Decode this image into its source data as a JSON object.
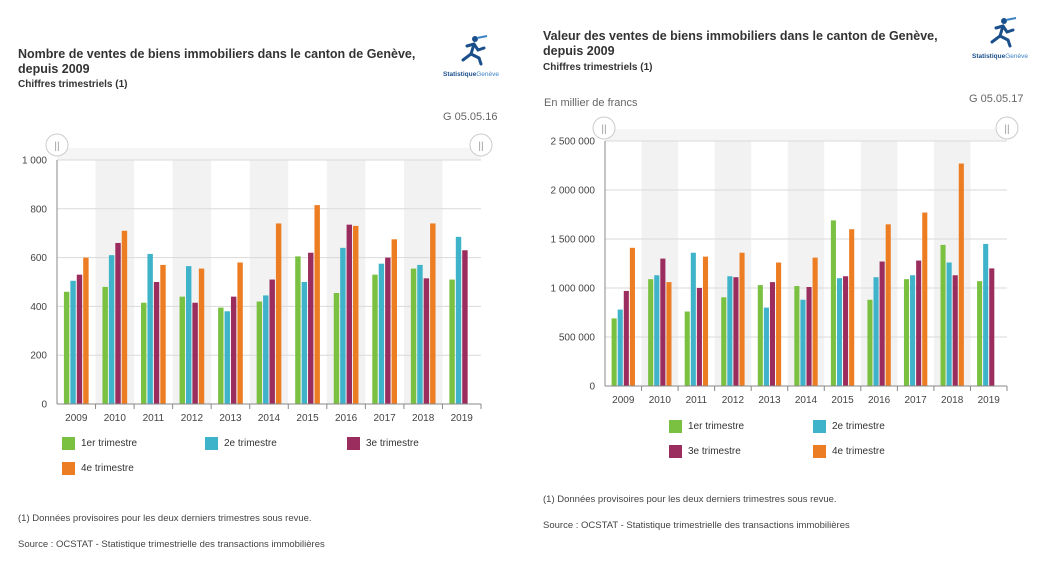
{
  "charts": [
    {
      "title": "Nombre de ventes de biens immobiliers dans le canton de Genève, depuis 2009",
      "subtitle": "Chiffres trimestriels (1)",
      "logo": {
        "brand_strong": "Statistique",
        "brand_light": "Genève",
        "icon": "runner-icon"
      },
      "code": "G 05.05.16",
      "unit": "",
      "note": "(1) Données provisoires pour les deux derniers trimestres sous revue.",
      "source": "Source : OCSTAT - Statistique trimestrielle des transactions immobilières",
      "handle_glyph": "||"
    },
    {
      "title": "Valeur des ventes de biens immobiliers dans le canton de Genève, depuis 2009",
      "subtitle": "Chiffres trimestriels (1)",
      "logo": {
        "brand_strong": "Statistique",
        "brand_light": "Genève",
        "icon": "runner-icon"
      },
      "code": "G 05.05.17",
      "unit": "En millier de francs",
      "note": "(1) Données provisoires pour les deux derniers trimestres sous revue.",
      "source": "Source : OCSTAT - Statistique trimestrielle des transactions immobilières",
      "handle_glyph": "||"
    }
  ],
  "colors": {
    "q1": "#7ac142",
    "q2": "#3fb3c9",
    "q3": "#9b2c5e",
    "q4": "#ed7d22",
    "grid": "#d9d9d9",
    "band": "#f2f2f2",
    "axis": "#888888"
  },
  "chart_data": [
    {
      "type": "bar",
      "title": "Nombre de ventes de biens immobiliers dans le canton de Genève, depuis 2009",
      "categories": [
        "2009",
        "2010",
        "2011",
        "2012",
        "2013",
        "2014",
        "2015",
        "2016",
        "2017",
        "2018",
        "2019"
      ],
      "ylim": [
        0,
        1000
      ],
      "yticks": [
        0,
        200,
        400,
        600,
        800,
        1000
      ],
      "ytick_labels": [
        "0",
        "200",
        "400",
        "600",
        "800",
        "1 000"
      ],
      "grid": true,
      "legend_position": "bottom",
      "series": [
        {
          "name": "1er trimestre",
          "values": [
            460,
            480,
            415,
            440,
            395,
            420,
            605,
            455,
            530,
            555,
            510
          ]
        },
        {
          "name": "2e trimestre",
          "values": [
            505,
            610,
            615,
            565,
            380,
            445,
            500,
            640,
            575,
            570,
            685
          ]
        },
        {
          "name": "3e trimestre",
          "values": [
            530,
            660,
            500,
            415,
            440,
            510,
            620,
            735,
            600,
            515,
            630
          ]
        },
        {
          "name": "4e trimestre",
          "values": [
            600,
            710,
            570,
            555,
            580,
            740,
            815,
            730,
            675,
            740,
            null
          ]
        }
      ]
    },
    {
      "type": "bar",
      "title": "Valeur des ventes de biens immobiliers dans le canton de Genève, depuis 2009",
      "ylabel": "En millier de francs",
      "categories": [
        "2009",
        "2010",
        "2011",
        "2012",
        "2013",
        "2014",
        "2015",
        "2016",
        "2017",
        "2018",
        "2019"
      ],
      "ylim": [
        0,
        2500000
      ],
      "yticks": [
        0,
        500000,
        1000000,
        1500000,
        2000000,
        2500000
      ],
      "ytick_labels": [
        "0",
        "500 000",
        "1 000 000",
        "1 500 000",
        "2 000 000",
        "2 500 000"
      ],
      "grid": true,
      "legend_position": "bottom",
      "series": [
        {
          "name": "1er trimestre",
          "values": [
            690000,
            1090000,
            760000,
            905000,
            1030000,
            1020000,
            1690000,
            880000,
            1090000,
            1440000,
            1070000
          ]
        },
        {
          "name": "2e trimestre",
          "values": [
            780000,
            1130000,
            1360000,
            1120000,
            800000,
            880000,
            1100000,
            1110000,
            1130000,
            1260000,
            1450000
          ]
        },
        {
          "name": "3e trimestre",
          "values": [
            970000,
            1300000,
            1000000,
            1110000,
            1060000,
            1010000,
            1120000,
            1270000,
            1280000,
            1130000,
            1200000
          ]
        },
        {
          "name": "4e trimestre",
          "values": [
            1410000,
            1060000,
            1320000,
            1360000,
            1260000,
            1310000,
            1600000,
            1650000,
            1770000,
            2270000,
            null
          ]
        }
      ]
    }
  ]
}
